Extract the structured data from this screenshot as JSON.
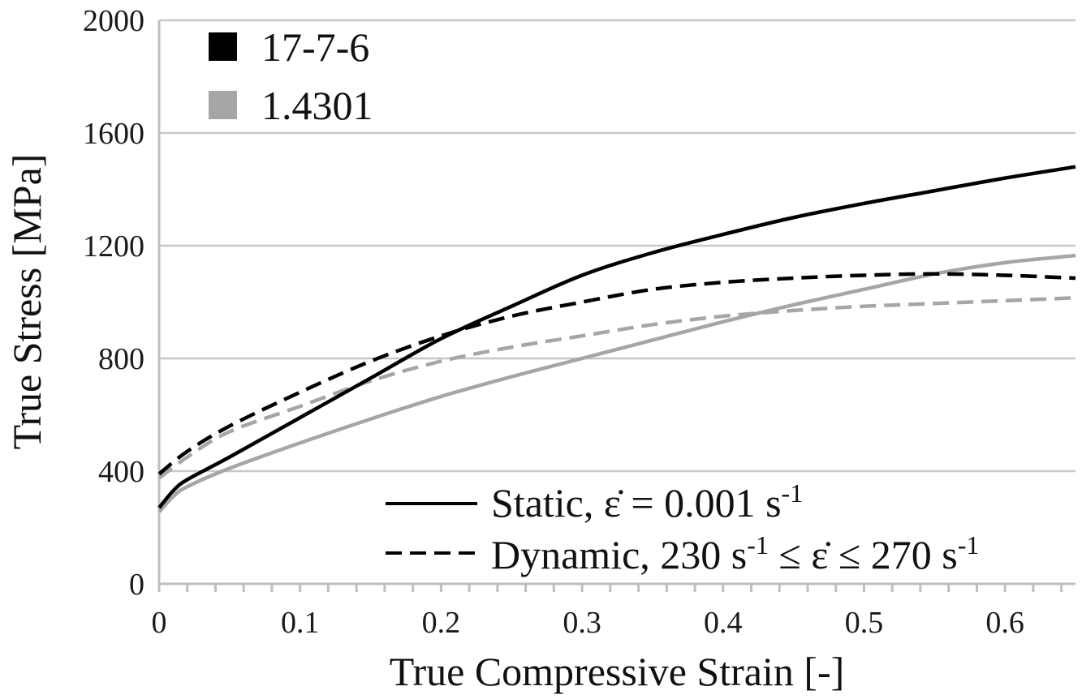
{
  "chart_data": {
    "type": "line",
    "title": "",
    "xlabel": "True Compressive Strain [-]",
    "ylabel": "True Stress [MPa]",
    "xlim": [
      0,
      0.65
    ],
    "ylim": [
      0,
      2000
    ],
    "xticks": [
      0,
      0.1,
      0.2,
      0.3,
      0.4,
      0.5,
      0.6
    ],
    "xtick_labels": [
      "0",
      "0.1",
      "0.2",
      "0.3",
      "0.4",
      "0.5",
      "0.6"
    ],
    "yticks": [
      0,
      400,
      800,
      1200,
      1600,
      2000
    ],
    "ytick_labels": [
      "0",
      "400",
      "800",
      "1200",
      "1600",
      "2000"
    ],
    "grid": "horizontal",
    "materials_legend": {
      "placement": "top-left",
      "items": [
        {
          "label": "17-7-6",
          "color": "#000000"
        },
        {
          "label": "1.4301",
          "color": "#a6a6a6"
        }
      ]
    },
    "style_legend": {
      "placement": "bottom-right",
      "static": {
        "prefix": "Static, ",
        "rate": "ε̇",
        "eq": " = 0.001 s",
        "exp": "-1"
      },
      "dynamic": {
        "prefix": "Dynamic, 230 s",
        "exp1": "-1",
        "mid": " ≤ ",
        "rate": "ε̇",
        "mid2": " ≤ 270 s",
        "exp2": "-1"
      }
    },
    "series": [
      {
        "material": "17-7-6",
        "rate": "static",
        "color": "#000000",
        "dash": "solid",
        "x": [
          0,
          0.01,
          0.02,
          0.05,
          0.1,
          0.15,
          0.2,
          0.25,
          0.3,
          0.35,
          0.4,
          0.45,
          0.5,
          0.55,
          0.6,
          0.65
        ],
        "y": [
          270,
          330,
          370,
          450,
          590,
          730,
          870,
          985,
          1095,
          1175,
          1240,
          1300,
          1350,
          1395,
          1440,
          1480
        ]
      },
      {
        "material": "17-7-6",
        "rate": "dynamic",
        "color": "#000000",
        "dash": "dashed",
        "x": [
          0,
          0.02,
          0.05,
          0.1,
          0.15,
          0.2,
          0.25,
          0.3,
          0.35,
          0.4,
          0.45,
          0.5,
          0.55,
          0.6,
          0.65
        ],
        "y": [
          390,
          470,
          560,
          680,
          790,
          880,
          950,
          1000,
          1045,
          1070,
          1085,
          1095,
          1100,
          1095,
          1085
        ]
      },
      {
        "material": "1.4301",
        "rate": "static",
        "color": "#a6a6a6",
        "dash": "solid",
        "x": [
          0,
          0.01,
          0.02,
          0.05,
          0.1,
          0.15,
          0.2,
          0.25,
          0.3,
          0.35,
          0.4,
          0.45,
          0.5,
          0.55,
          0.6,
          0.65
        ],
        "y": [
          255,
          310,
          345,
          410,
          500,
          585,
          665,
          735,
          800,
          865,
          930,
          990,
          1045,
          1100,
          1140,
          1165
        ]
      },
      {
        "material": "1.4301",
        "rate": "dynamic",
        "color": "#a6a6a6",
        "dash": "dashed",
        "x": [
          0,
          0.02,
          0.05,
          0.1,
          0.15,
          0.2,
          0.25,
          0.3,
          0.35,
          0.4,
          0.45,
          0.5,
          0.55,
          0.6,
          0.65
        ],
        "y": [
          375,
          450,
          540,
          630,
          720,
          790,
          840,
          880,
          920,
          950,
          970,
          985,
          995,
          1005,
          1015
        ]
      }
    ]
  }
}
